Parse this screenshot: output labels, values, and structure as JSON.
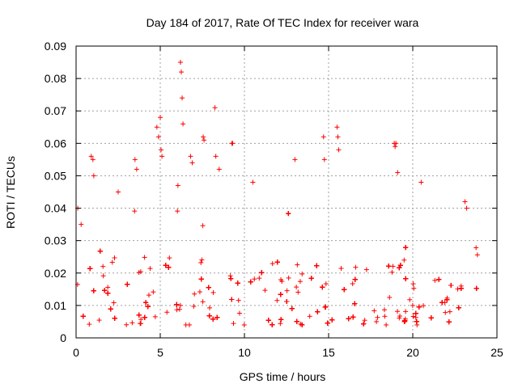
{
  "chart_data": {
    "type": "scatter",
    "title": "Day 184 of 2017, Rate Of TEC Index for receiver wara",
    "xlabel": "GPS time / hours",
    "ylabel": "ROTI / TECUs",
    "xlim": [
      0,
      25
    ],
    "ylim": [
      0,
      0.09
    ],
    "xticks": [
      0,
      5,
      10,
      15,
      20,
      25
    ],
    "yticks": [
      0,
      0.01,
      0.02,
      0.03,
      0.04,
      0.05,
      0.06,
      0.07,
      0.08,
      0.09
    ],
    "xtick_labels": [
      "0",
      "5",
      "10",
      "15",
      "20",
      "25"
    ],
    "ytick_labels": [
      "0",
      "0.01",
      "0.02",
      "0.03",
      "0.04",
      "0.05",
      "0.06",
      "0.07",
      "0.08",
      "0.09"
    ],
    "grid": true,
    "marker": "+",
    "color": "#ff0000",
    "series": [
      {
        "name": "ROTI",
        "x": [
          0.1,
          0.3,
          0.9,
          1.0,
          1.05,
          2.5,
          3.5,
          3.6,
          4.8,
          4.9,
          5.0,
          5.05,
          5.1,
          6.05,
          6.2,
          6.25,
          6.3,
          6.35,
          6.8,
          6.9,
          7.55,
          7.6,
          8.25,
          8.3,
          8.5,
          9.25,
          9.3,
          10.5,
          13.0,
          14.7,
          14.75,
          15.5,
          15.55,
          15.6,
          18.9,
          18.95,
          19.0,
          19.1,
          20.5,
          23.1,
          23.2
        ],
        "y": [
          0.04,
          0.035,
          0.056,
          0.055,
          0.05,
          0.045,
          0.055,
          0.052,
          0.065,
          0.062,
          0.068,
          0.058,
          0.056,
          0.047,
          0.085,
          0.082,
          0.074,
          0.066,
          0.056,
          0.054,
          0.062,
          0.061,
          0.071,
          0.056,
          0.052,
          0.06,
          0.06,
          0.048,
          0.055,
          0.062,
          0.055,
          0.065,
          0.062,
          0.058,
          0.06,
          0.059,
          0.06,
          0.051,
          0.048,
          0.042,
          0.04
        ]
      }
    ]
  }
}
